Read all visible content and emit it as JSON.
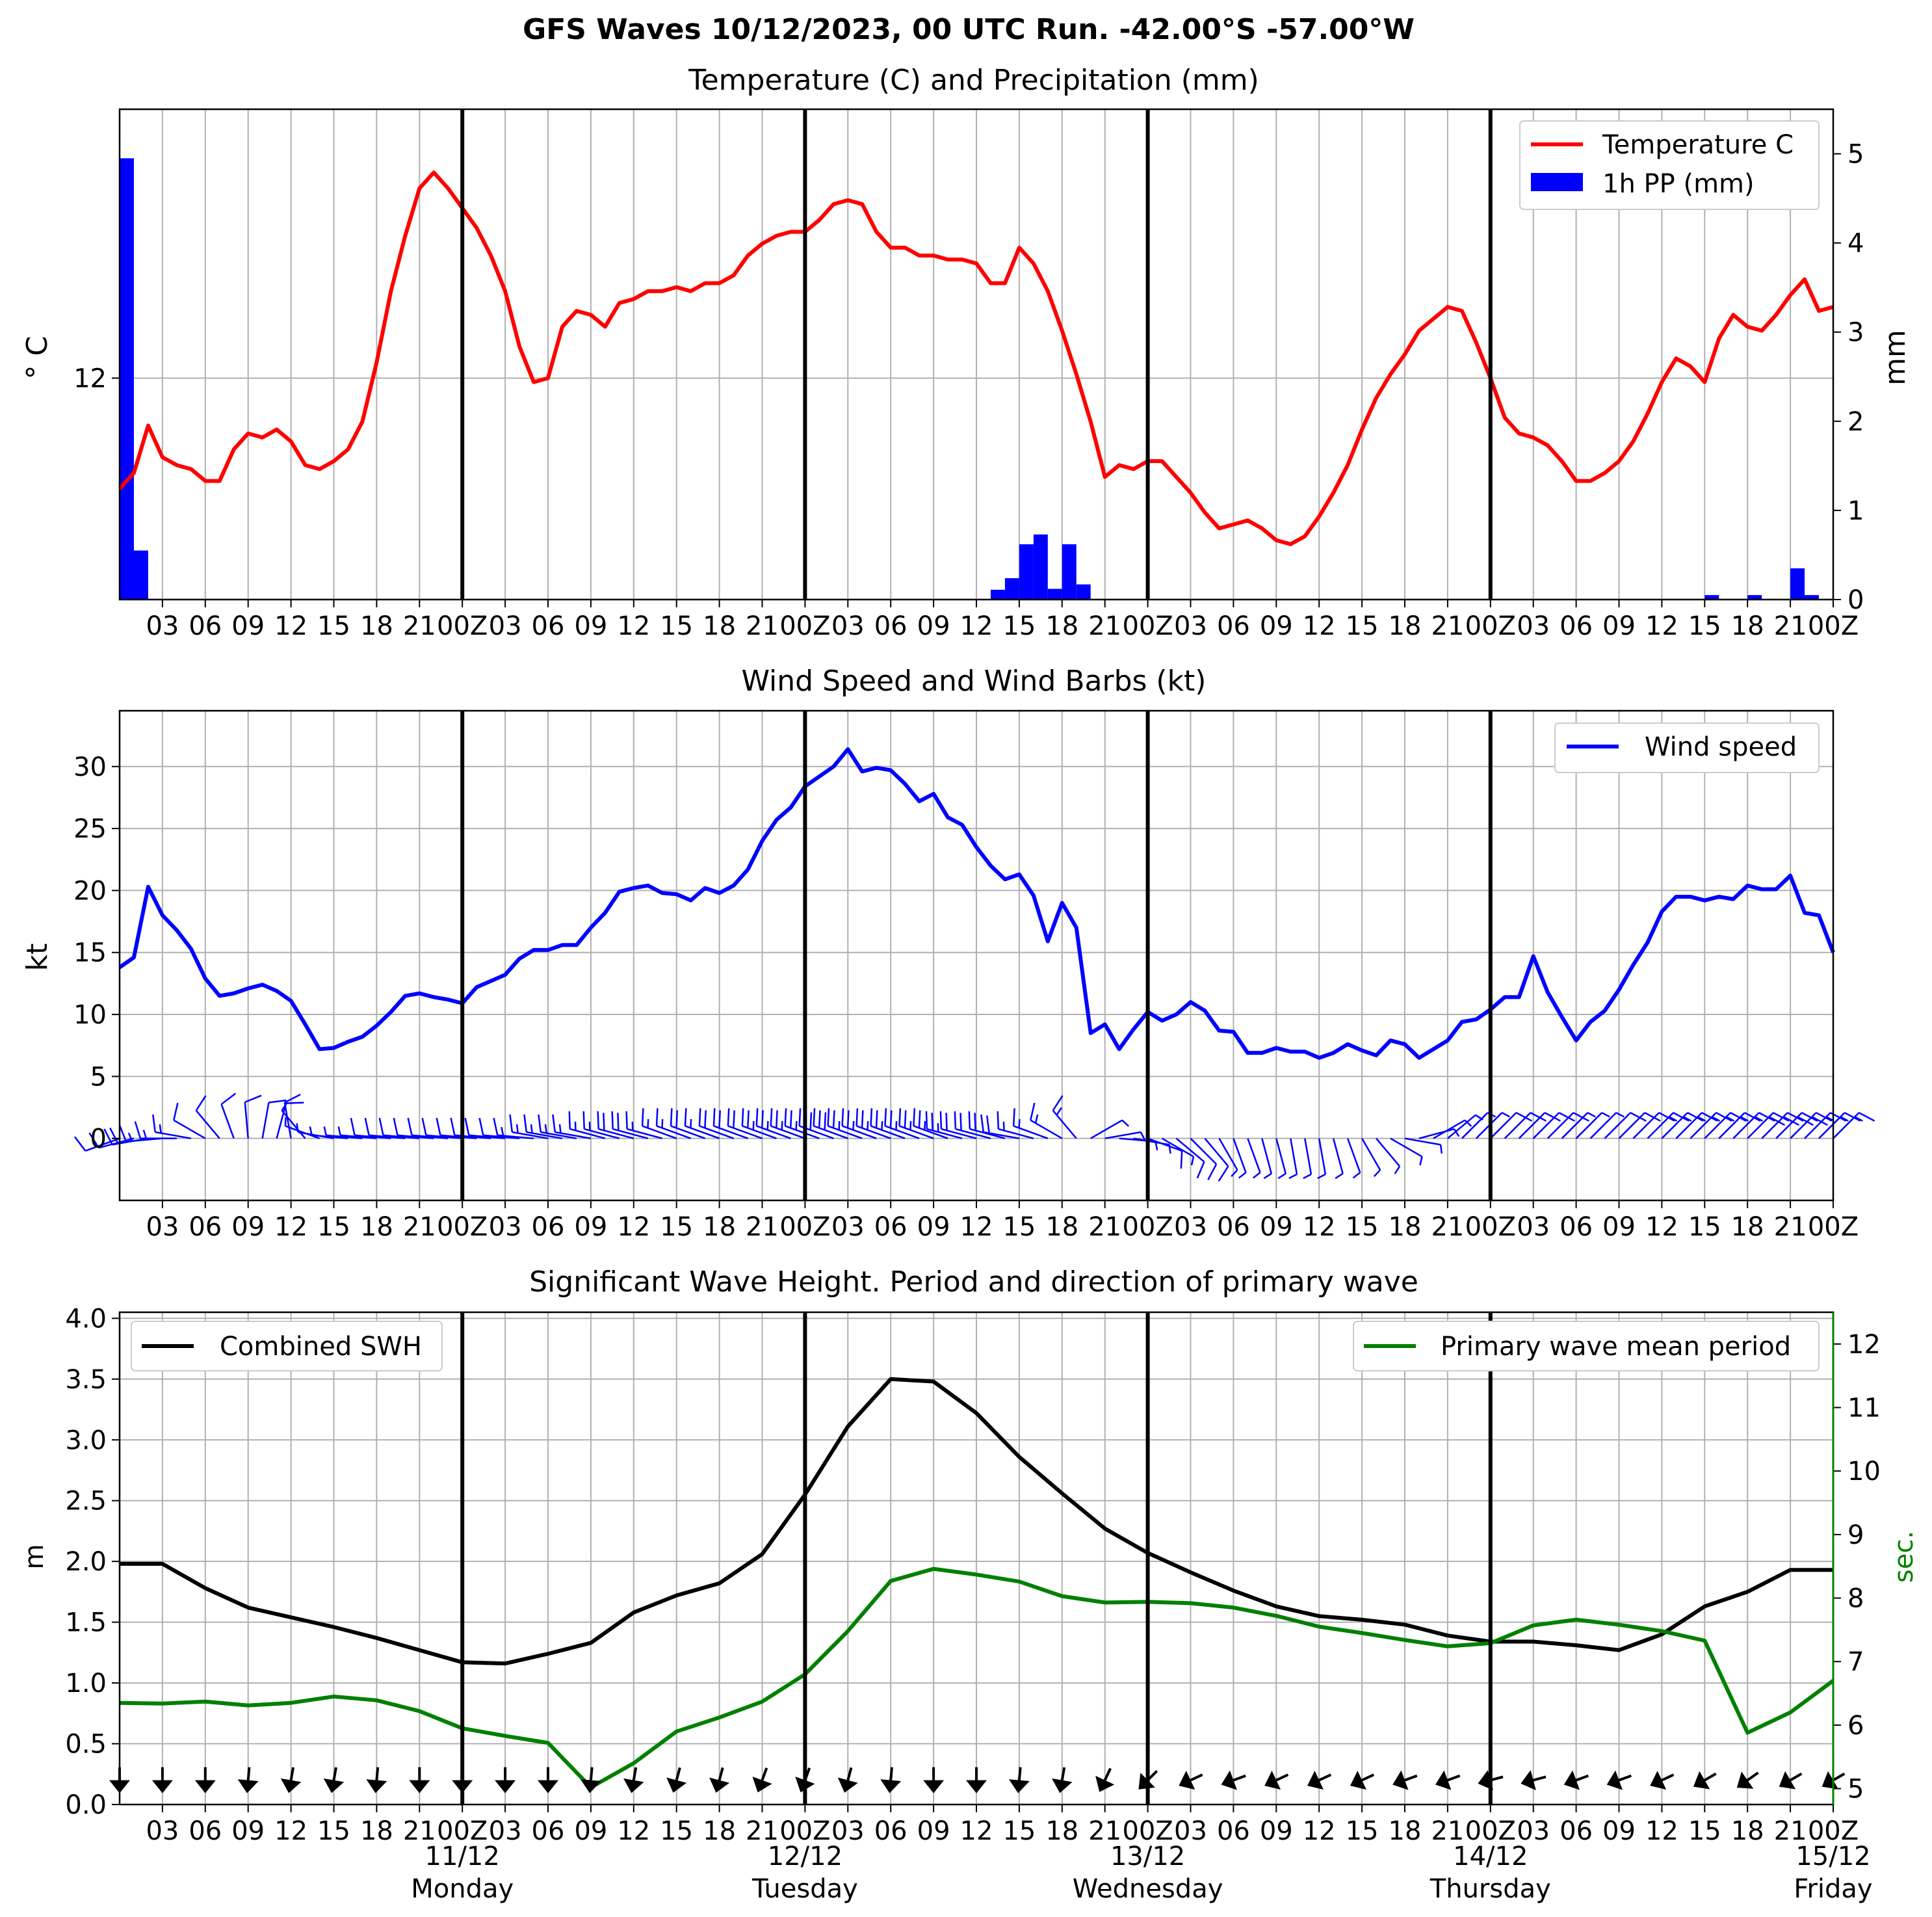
{
  "figure": {
    "title": "GFS Waves 10/12/2023, 00 UTC Run. -42.00°S -57.00°W"
  },
  "x_axis": {
    "tick_labels": [
      "03",
      "06",
      "09",
      "12",
      "15",
      "18",
      "21",
      "00Z",
      "03",
      "06",
      "09",
      "12",
      "15",
      "18",
      "21",
      "00Z",
      "03",
      "06",
      "09",
      "12",
      "15",
      "18",
      "21",
      "00Z",
      "03",
      "06",
      "09",
      "12",
      "15",
      "18",
      "21",
      "00Z",
      "03",
      "06",
      "09",
      "12",
      "15",
      "18",
      "21",
      "00Z"
    ],
    "date_labels": [
      "11/12",
      "12/12",
      "13/12",
      "14/12",
      "15/12"
    ],
    "day_labels": [
      "Monday",
      "Tuesday",
      "Wednesday",
      "Thursday",
      "Friday"
    ]
  },
  "colors": {
    "temperature": "#ff0000",
    "precipitation": "#0000ff",
    "wind": "#0000ff",
    "swh": "#000000",
    "period": "#008000",
    "grid": "#b0b0b0"
  },
  "chart_data": [
    {
      "type": "line",
      "title": "Temperature (C) and Precipitation (mm)",
      "ylabel": "° C",
      "ylabel_right": "mm",
      "y_ticks": [
        12
      ],
      "ylim": [
        9.2,
        15.4
      ],
      "ylim_right": [
        0,
        5.5
      ],
      "y_ticks_right": [
        0,
        1,
        2,
        3,
        4,
        5
      ],
      "x_range_hours": [
        0,
        120
      ],
      "legend": "top-right",
      "series": [
        {
          "name": "Temperature C",
          "x": [
            0,
            1,
            2,
            3,
            4,
            5,
            6,
            7,
            8,
            9,
            10,
            11,
            12,
            13,
            14,
            15,
            16,
            17,
            18,
            19,
            20,
            21,
            22,
            23,
            24,
            25,
            26,
            27,
            28,
            29,
            30,
            31,
            32,
            33,
            34,
            35,
            36,
            37,
            38,
            39,
            40,
            41,
            42,
            43,
            44,
            45,
            46,
            47,
            48,
            49,
            50,
            51,
            52,
            53,
            54,
            55,
            56,
            57,
            58,
            59,
            60,
            61,
            62,
            63,
            64,
            65,
            66,
            67,
            68,
            69,
            70,
            71,
            72,
            73,
            74,
            75,
            76,
            77,
            78,
            79,
            80,
            81,
            82,
            83,
            84,
            85,
            86,
            87,
            88,
            89,
            90,
            91,
            92,
            93,
            94,
            95,
            96,
            97,
            98,
            99,
            100,
            101,
            102,
            103,
            104,
            105,
            106,
            107,
            108,
            109,
            110,
            111,
            112,
            113,
            114,
            115,
            116,
            117,
            118,
            119,
            120
          ],
          "values": [
            10.6,
            10.8,
            11.4,
            11.0,
            10.9,
            10.85,
            10.7,
            10.7,
            11.1,
            11.3,
            11.25,
            11.35,
            11.2,
            10.9,
            10.85,
            10.95,
            11.1,
            11.45,
            12.2,
            13.1,
            13.8,
            14.4,
            14.6,
            14.4,
            14.15,
            13.9,
            13.55,
            13.1,
            12.4,
            11.95,
            12.0,
            12.65,
            12.85,
            12.8,
            12.65,
            12.95,
            13.0,
            13.1,
            13.1,
            13.15,
            13.1,
            13.2,
            13.2,
            13.3,
            13.55,
            13.7,
            13.8,
            13.85,
            13.85,
            14.0,
            14.2,
            14.25,
            14.2,
            13.85,
            13.65,
            13.65,
            13.55,
            13.55,
            13.5,
            13.5,
            13.45,
            13.2,
            13.2,
            13.65,
            13.45,
            13.1,
            12.6,
            12.05,
            11.45,
            10.75,
            10.9,
            10.85,
            10.95,
            10.95,
            10.75,
            10.55,
            10.3,
            10.1,
            10.15,
            10.2,
            10.1,
            9.95,
            9.9,
            10.0,
            10.25,
            10.55,
            10.9,
            11.35,
            11.75,
            12.05,
            12.3,
            12.6,
            12.75,
            12.9,
            12.85,
            12.45,
            12.0,
            11.5,
            11.3,
            11.25,
            11.15,
            10.95,
            10.7,
            10.7,
            10.8,
            10.95,
            11.2,
            11.55,
            11.95,
            12.25,
            12.15,
            11.95,
            12.5,
            12.8,
            12.65,
            12.6,
            12.8,
            13.05,
            13.25,
            12.85,
            12.9
          ]
        },
        {
          "name": "1h PP (mm)",
          "type": "bar",
          "x": [
            0,
            1,
            61,
            62,
            63,
            64,
            65,
            66,
            67,
            68,
            111,
            114,
            117,
            118
          ],
          "values": [
            4.95,
            0.55,
            0.11,
            0.24,
            0.62,
            0.73,
            0.12,
            0.62,
            0.17,
            0.0,
            0.05,
            0.05,
            0.35,
            0.05
          ]
        }
      ]
    },
    {
      "type": "line",
      "title": "Wind Speed and Wind Barbs (kt)",
      "ylabel": "kt",
      "ylim": [
        -5,
        34.5
      ],
      "y_ticks": [
        0,
        5,
        10,
        15,
        20,
        25,
        30
      ],
      "x_range_hours": [
        0,
        120
      ],
      "legend": "top-right",
      "series": [
        {
          "name": "Wind speed",
          "x": [
            0,
            1,
            2,
            3,
            4,
            5,
            6,
            7,
            8,
            9,
            10,
            11,
            12,
            13,
            14,
            15,
            16,
            17,
            18,
            19,
            20,
            21,
            22,
            23,
            24,
            25,
            26,
            27,
            28,
            29,
            30,
            31,
            32,
            33,
            34,
            35,
            36,
            37,
            38,
            39,
            40,
            41,
            42,
            43,
            44,
            45,
            46,
            47,
            48,
            49,
            50,
            51,
            52,
            53,
            54,
            55,
            56,
            57,
            58,
            59,
            60,
            61,
            62,
            63,
            64,
            65,
            66,
            67,
            68,
            69,
            70,
            71,
            72,
            73,
            74,
            75,
            76,
            77,
            78,
            79,
            80,
            81,
            82,
            83,
            84,
            85,
            86,
            87,
            88,
            89,
            90,
            91,
            92,
            93,
            94,
            95,
            96,
            97,
            98,
            99,
            100,
            101,
            102,
            103,
            104,
            105,
            106,
            107,
            108,
            109,
            110,
            111,
            112,
            113,
            114,
            115,
            116,
            117,
            118,
            119,
            120
          ],
          "values": [
            13.8,
            14.6,
            20.3,
            18.0,
            16.8,
            15.3,
            12.9,
            11.5,
            11.7,
            12.1,
            12.4,
            11.9,
            11.1,
            9.2,
            7.2,
            7.3,
            7.8,
            8.2,
            9.1,
            10.2,
            11.5,
            11.7,
            11.4,
            11.2,
            10.9,
            12.2,
            12.7,
            13.2,
            14.5,
            15.2,
            15.2,
            15.6,
            15.6,
            17.0,
            18.2,
            19.9,
            20.2,
            20.4,
            19.8,
            19.7,
            19.2,
            20.2,
            19.8,
            20.4,
            21.7,
            24.0,
            25.7,
            26.7,
            28.4,
            29.2,
            30.0,
            31.4,
            29.6,
            29.9,
            29.7,
            28.6,
            27.2,
            27.8,
            25.9,
            25.3,
            23.5,
            22.0,
            20.9,
            21.3,
            19.6,
            15.9,
            19.0,
            17.0,
            8.5,
            9.2,
            7.2,
            8.8,
            10.2,
            9.5,
            10.0,
            11.0,
            10.3,
            8.7,
            8.6,
            6.9,
            6.9,
            7.3,
            7.0,
            7.0,
            6.5,
            6.9,
            7.6,
            7.1,
            6.7,
            7.9,
            7.6,
            6.5,
            7.2,
            7.9,
            9.4,
            9.6,
            10.4,
            11.4,
            11.4,
            14.7,
            11.8,
            9.8,
            7.9,
            9.4,
            10.3,
            12.0,
            14.0,
            15.8,
            18.3,
            19.5,
            19.5,
            19.2,
            19.5,
            19.3,
            20.4,
            20.1,
            20.1,
            21.2,
            18.2,
            18.0,
            15.0
          ]
        }
      ]
    },
    {
      "type": "line",
      "title": "Significant Wave Height. Period and direction of primary wave",
      "ylabel": "m",
      "ylabel_right": "sec.",
      "ylim": [
        0,
        4.05
      ],
      "y_ticks": [
        0.0,
        0.5,
        1.0,
        1.5,
        2.0,
        2.5,
        3.0,
        3.5,
        4.0
      ],
      "ylim_right": [
        4.75,
        12.5
      ],
      "y_ticks_right": [
        5,
        6,
        7,
        8,
        9,
        10,
        11,
        12
      ],
      "x_range_hours": [
        0,
        120
      ],
      "legend_left": "top-left",
      "legend_right": "top-right",
      "series": [
        {
          "name": "Combined SWH",
          "x": [
            0,
            3,
            6,
            9,
            12,
            15,
            18,
            21,
            24,
            27,
            30,
            33,
            36,
            39,
            42,
            45,
            48,
            51,
            54,
            57,
            60,
            63,
            66,
            69,
            72,
            75,
            78,
            81,
            84,
            87,
            90,
            93,
            96,
            99,
            102,
            105,
            108,
            111,
            114,
            117,
            120
          ],
          "values": [
            1.98,
            1.98,
            1.78,
            1.62,
            1.54,
            1.46,
            1.37,
            1.27,
            1.17,
            1.16,
            1.24,
            1.33,
            1.58,
            1.72,
            1.82,
            2.06,
            2.55,
            3.11,
            3.5,
            3.48,
            3.22,
            2.86,
            2.56,
            2.27,
            2.07,
            1.91,
            1.76,
            1.63,
            1.55,
            1.52,
            1.48,
            1.39,
            1.34,
            1.34,
            1.31,
            1.27,
            1.4,
            1.63,
            1.75,
            1.93,
            1.93
          ]
        },
        {
          "name": "Primary wave mean period",
          "x": [
            0,
            3,
            6,
            9,
            12,
            15,
            18,
            21,
            24,
            27,
            30,
            33,
            36,
            39,
            42,
            45,
            48,
            51,
            54,
            57,
            60,
            63,
            66,
            69,
            72,
            75,
            78,
            81,
            84,
            87,
            90,
            93,
            96,
            99,
            102,
            105,
            108,
            111,
            114,
            117,
            120
          ],
          "values": [
            6.35,
            6.34,
            6.37,
            6.31,
            6.35,
            6.45,
            6.39,
            6.22,
            5.95,
            5.83,
            5.72,
            5.02,
            5.4,
            5.9,
            6.12,
            6.37,
            6.8,
            7.48,
            8.27,
            8.46,
            8.37,
            8.26,
            8.03,
            7.93,
            7.94,
            7.92,
            7.85,
            7.72,
            7.55,
            7.45,
            7.34,
            7.24,
            7.29,
            7.57,
            7.66,
            7.58,
            7.48,
            7.33,
            5.88,
            6.2,
            6.7
          ]
        },
        {
          "name": "Primary wave direction",
          "type": "arrows",
          "x": [
            0,
            3,
            6,
            9,
            12,
            15,
            18,
            21,
            24,
            27,
            30,
            33,
            36,
            39,
            42,
            45,
            48,
            51,
            54,
            57,
            60,
            63,
            66,
            69,
            72,
            75,
            78,
            81,
            84,
            87,
            90,
            93,
            96,
            99,
            102,
            105,
            108,
            111,
            114,
            117,
            120
          ],
          "direction_deg": [
            180,
            180,
            180,
            185,
            190,
            190,
            185,
            180,
            180,
            180,
            180,
            185,
            190,
            195,
            195,
            200,
            200,
            195,
            185,
            180,
            180,
            185,
            190,
            205,
            225,
            245,
            250,
            245,
            245,
            245,
            250,
            250,
            255,
            255,
            250,
            250,
            245,
            240,
            235,
            240,
            240
          ]
        }
      ]
    }
  ],
  "wind_barbs": {
    "x_hours": [
      0,
      1,
      2,
      3,
      4,
      5,
      6,
      7,
      8,
      9,
      10,
      11,
      12,
      13,
      14,
      15,
      16,
      17,
      18,
      19,
      20,
      21,
      22,
      23,
      24,
      25,
      26,
      27,
      28,
      29,
      30,
      31,
      32,
      33,
      34,
      35,
      36,
      37,
      38,
      39,
      40,
      41,
      42,
      43,
      44,
      45,
      46,
      47,
      48,
      49,
      50,
      51,
      52,
      53,
      54,
      55,
      56,
      57,
      58,
      59,
      60,
      61,
      62,
      63,
      64,
      65,
      66,
      67,
      68,
      69,
      70,
      71,
      72,
      73,
      74,
      75,
      76,
      77,
      78,
      79,
      80,
      81,
      82,
      83,
      84,
      85,
      86,
      87,
      88,
      89,
      90,
      91,
      92,
      93,
      94,
      95,
      96,
      97,
      98,
      99,
      100,
      101,
      102,
      103,
      104,
      105,
      106,
      107,
      108,
      109,
      110,
      111,
      112,
      113,
      114,
      115,
      116,
      117,
      118,
      119,
      120
    ],
    "direction_from_deg": [
      250,
      255,
      260,
      265,
      270,
      280,
      300,
      320,
      340,
      355,
      10,
      15,
      350,
      320,
      290,
      280,
      275,
      275,
      275,
      275,
      275,
      275,
      275,
      275,
      275,
      275,
      275,
      275,
      275,
      275,
      280,
      280,
      280,
      280,
      285,
      285,
      285,
      285,
      285,
      290,
      290,
      290,
      290,
      290,
      290,
      290,
      290,
      290,
      290,
      290,
      290,
      290,
      290,
      290,
      290,
      290,
      290,
      290,
      290,
      285,
      285,
      285,
      285,
      280,
      285,
      290,
      300,
      320,
      60,
      80,
      95,
      100,
      110,
      120,
      130,
      135,
      140,
      150,
      160,
      160,
      165,
      165,
      170,
      170,
      170,
      165,
      160,
      150,
      140,
      120,
      100,
      75,
      60,
      50,
      45,
      45,
      45,
      45,
      45,
      45,
      45,
      45,
      45,
      45,
      45,
      45,
      45,
      45,
      45,
      45,
      45,
      45,
      45,
      45,
      45,
      45,
      45,
      45,
      45,
      45,
      45
    ]
  }
}
